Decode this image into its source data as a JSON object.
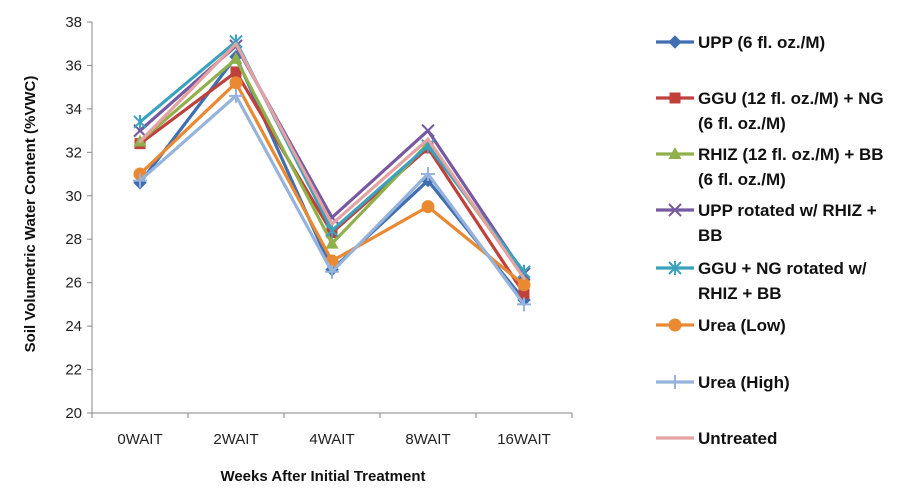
{
  "chart_data": {
    "type": "line",
    "title": "",
    "xlabel": "Weeks After Initial Treatment",
    "ylabel": "Soil Volumetric Water Content (%VWC)",
    "ylim": [
      20,
      38
    ],
    "yticks": [
      20,
      22,
      24,
      26,
      28,
      30,
      32,
      34,
      36,
      38
    ],
    "grid": false,
    "legend_position": "right",
    "categories": [
      "0WAIT",
      "2WAIT",
      "4WAIT",
      "8WAIT",
      "16WAIT"
    ],
    "series": [
      {
        "name": "UPP (6 fl. oz./M)",
        "legend_lines": [
          "UPP (6 fl. oz./M)"
        ],
        "color": "#3F6FB0",
        "marker": "diamond",
        "values": [
          30.6,
          36.4,
          26.6,
          30.7,
          25.2
        ]
      },
      {
        "name": "GGU (12 fl. oz./M) + NG (6 fl. oz./M)",
        "legend_lines": [
          "GGU (12 fl. oz./M) + NG",
          "(6 fl. oz./M)"
        ],
        "color": "#C0413B",
        "marker": "square",
        "values": [
          32.4,
          35.7,
          28.3,
          32.2,
          25.5
        ]
      },
      {
        "name": "RHIZ (12 fl. oz./M) + BB (6 fl. oz./M)",
        "legend_lines": [
          "RHIZ (12 fl. oz./M) + BB",
          "(6 fl. oz./M)"
        ],
        "color": "#8FB04A",
        "marker": "triangle",
        "values": [
          32.5,
          36.3,
          27.8,
          32.4,
          26.3
        ]
      },
      {
        "name": "UPP rotated w/ RHIZ + BB",
        "legend_lines": [
          "UPP rotated w/ RHIZ +",
          "BB"
        ],
        "color": "#7659A0",
        "marker": "x",
        "values": [
          33.0,
          36.9,
          29.0,
          33.0,
          26.4
        ]
      },
      {
        "name": "GGU + NG rotated w/ RHIZ + BB",
        "legend_lines": [
          "GGU + NG rotated w/",
          "RHIZ + BB"
        ],
        "color": "#3AA2BC",
        "marker": "star",
        "values": [
          33.4,
          37.1,
          28.4,
          32.3,
          26.5
        ]
      },
      {
        "name": "Urea (Low)",
        "legend_lines": [
          "Urea (Low)"
        ],
        "color": "#E98A33",
        "marker": "circle",
        "values": [
          31.0,
          35.2,
          27.0,
          29.5,
          25.9
        ]
      },
      {
        "name": "Urea (High)",
        "legend_lines": [
          "Urea (High)"
        ],
        "color": "#96B3DC",
        "marker": "plus",
        "values": [
          30.7,
          34.6,
          26.5,
          31.0,
          25.0
        ]
      },
      {
        "name": "Untreated",
        "legend_lines": [
          "Untreated"
        ],
        "color": "#E4A2A2",
        "marker": "none",
        "values": [
          32.5,
          37.0,
          28.7,
          32.6,
          26.2
        ]
      }
    ]
  }
}
